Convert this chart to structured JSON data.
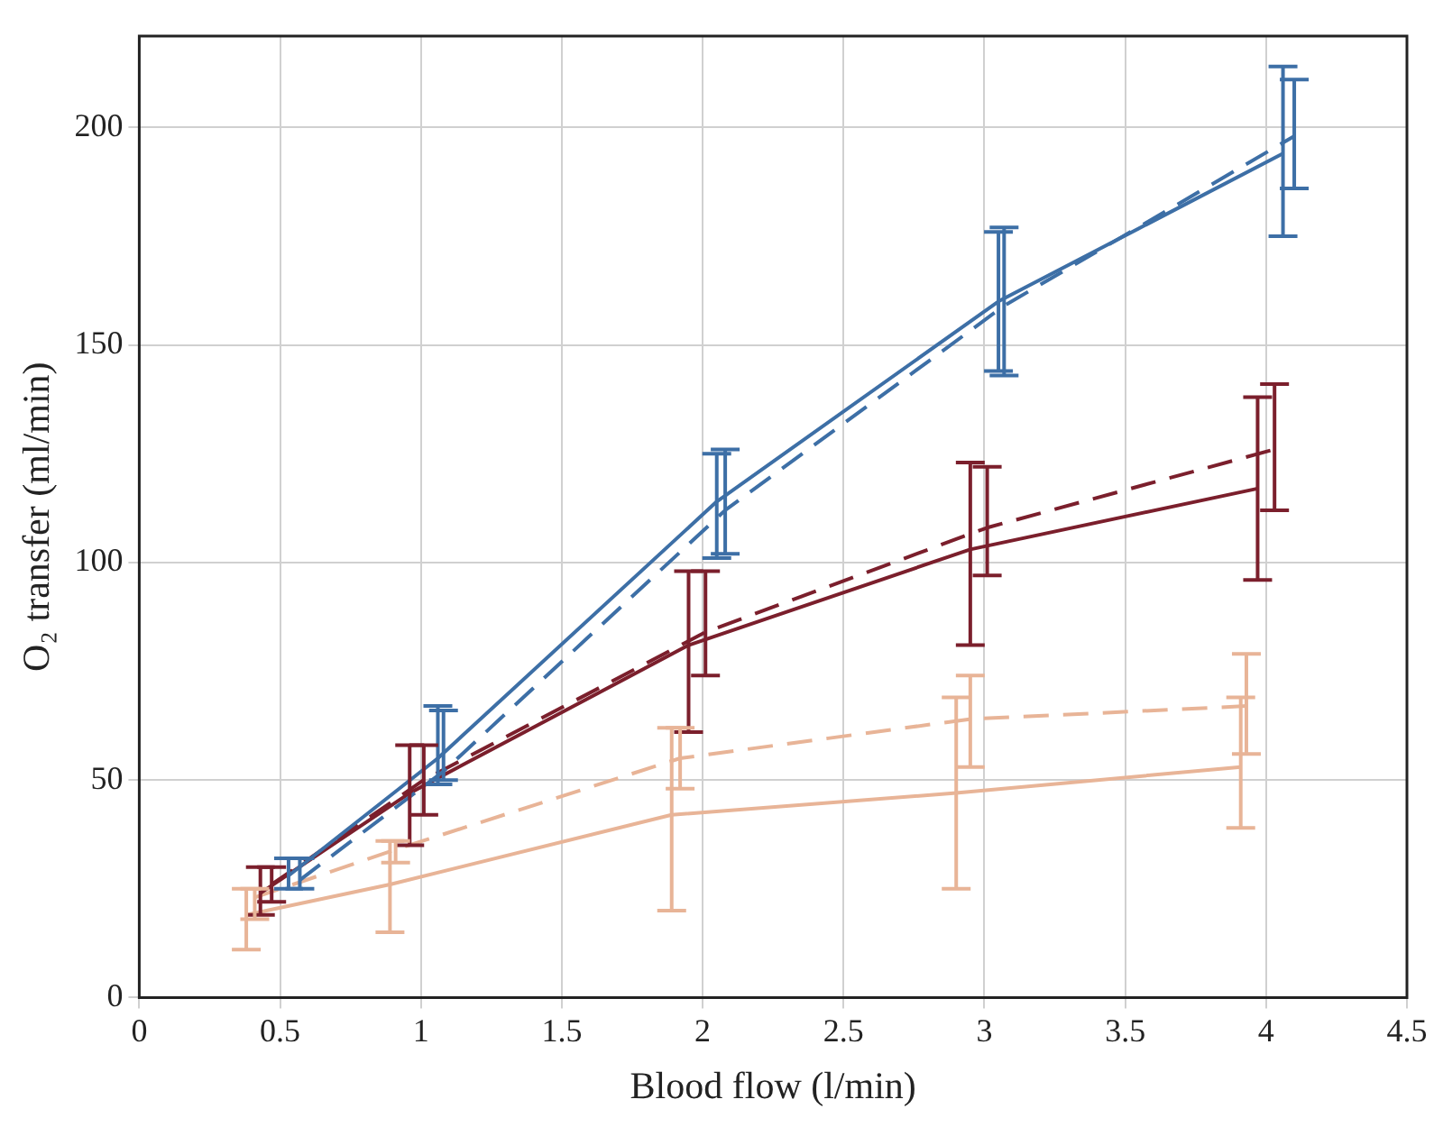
{
  "chart_data": {
    "type": "line",
    "xlabel": "Blood flow (l/min)",
    "ylabel": "O₂ transfer (ml/min)",
    "xlim": [
      0,
      4.5
    ],
    "xticks": [
      0,
      0.5,
      1,
      1.5,
      2,
      2.5,
      3,
      3.5,
      4,
      4.5
    ],
    "ylim": [
      0,
      221
    ],
    "yticks": [
      0,
      50,
      100,
      150,
      200
    ],
    "grid": true,
    "legend": false,
    "series": [
      {
        "color": "#3d6fa6",
        "line_style": "solid",
        "x": [
          0.53,
          1.06,
          2.05,
          3.05,
          4.06
        ],
        "values": [
          28,
          55,
          114,
          160,
          194
        ],
        "errors": [
          [
            25,
            32
          ],
          [
            49,
            67
          ],
          [
            101,
            125
          ],
          [
            144,
            176
          ],
          [
            175,
            214
          ]
        ]
      },
      {
        "color": "#3d6fa6",
        "line_style": "dashed",
        "x": [
          0.57,
          1.08,
          2.08,
          3.07,
          4.1
        ],
        "values": [
          27,
          52,
          112,
          159,
          198
        ],
        "errors": [
          [
            25,
            32
          ],
          [
            50,
            66
          ],
          [
            102,
            126
          ],
          [
            143,
            177
          ],
          [
            186,
            211
          ]
        ]
      },
      {
        "color": "#7b1f2c",
        "line_style": "solid",
        "x": [
          0.43,
          0.96,
          1.95,
          2.95,
          3.97
        ],
        "values": [
          24,
          47,
          81,
          103,
          117
        ],
        "errors": [
          [
            19,
            30
          ],
          [
            35,
            58
          ],
          [
            61,
            98
          ],
          [
            81,
            123
          ],
          [
            96,
            138
          ]
        ]
      },
      {
        "color": "#7b1f2c",
        "line_style": "dashed",
        "x": [
          0.47,
          1.01,
          2.01,
          3.01,
          4.03
        ],
        "values": [
          26,
          50,
          84,
          108,
          126
        ],
        "errors": [
          [
            22,
            30
          ],
          [
            42,
            58
          ],
          [
            74,
            98
          ],
          [
            97,
            122
          ],
          [
            112,
            141
          ]
        ]
      },
      {
        "color": "#e8b497",
        "line_style": "solid",
        "x": [
          0.38,
          0.89,
          1.89,
          2.9,
          3.91
        ],
        "values": [
          19,
          26,
          42,
          47,
          53
        ],
        "errors": [
          [
            11,
            25
          ],
          [
            15,
            36
          ],
          [
            20,
            62
          ],
          [
            25,
            69
          ],
          [
            39,
            69
          ]
        ]
      },
      {
        "color": "#e8b497",
        "line_style": "dashed",
        "x": [
          0.41,
          0.91,
          1.92,
          2.95,
          3.93
        ],
        "values": [
          23,
          34,
          55,
          64,
          67
        ],
        "errors": [
          [
            18,
            25
          ],
          [
            31,
            36
          ],
          [
            48,
            62
          ],
          [
            53,
            74
          ],
          [
            56,
            79
          ]
        ]
      }
    ]
  }
}
